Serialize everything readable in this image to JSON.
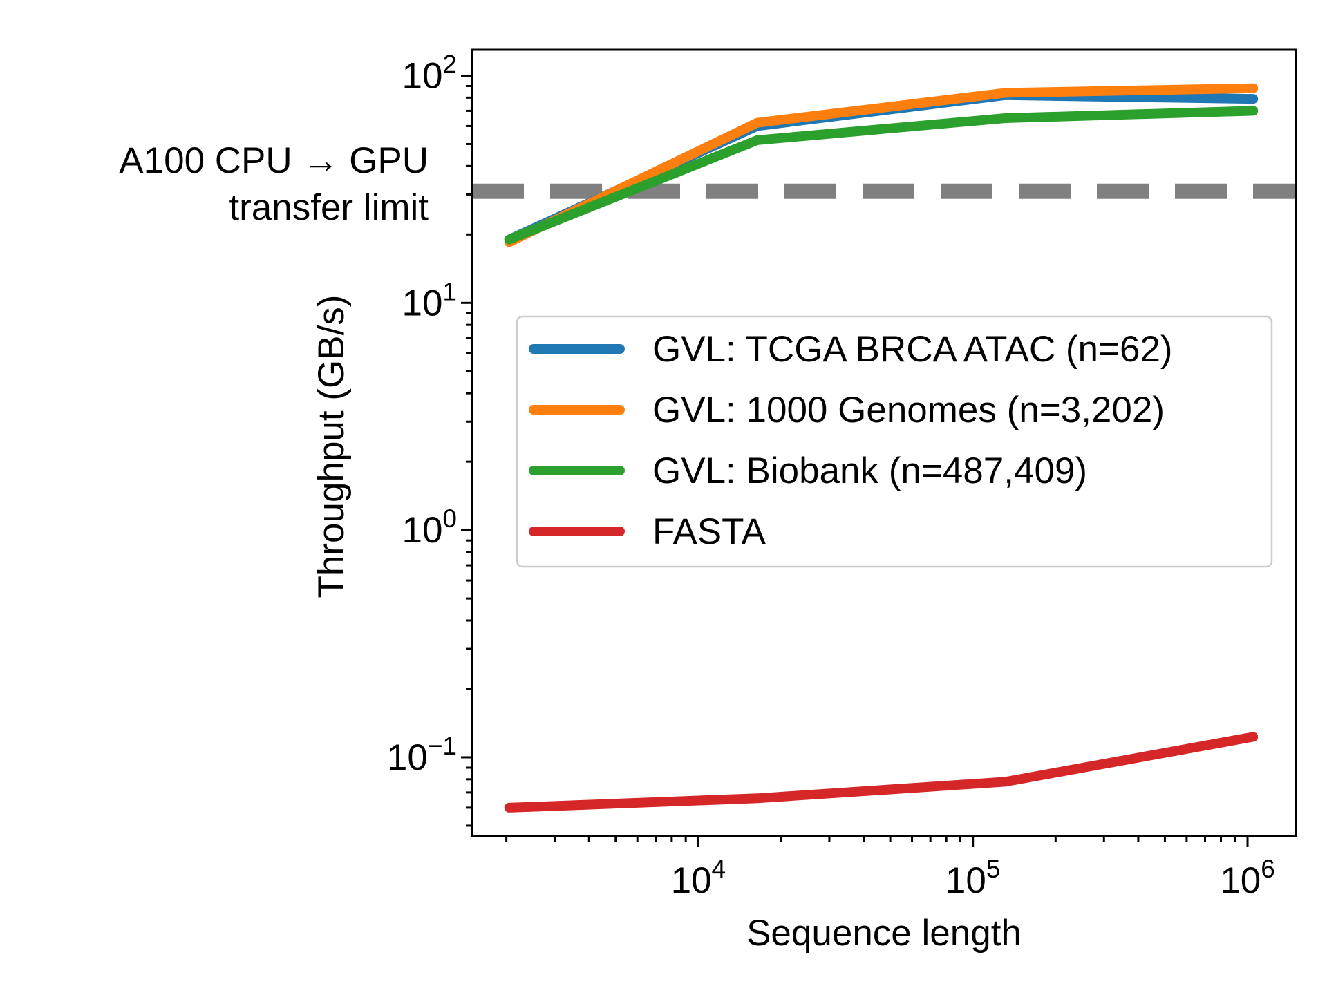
{
  "chart_data": {
    "type": "line",
    "xlabel": "Sequence length",
    "ylabel": "Throughput (GB/s)",
    "xscale": "log",
    "yscale": "log",
    "xlim": [
      1500,
      1500000
    ],
    "ylim": [
      0.045,
      130
    ],
    "x": [
      2048,
      16384,
      131072,
      1048576
    ],
    "x_ticks": [
      {
        "value": 10000,
        "base": "10",
        "exp": "4"
      },
      {
        "value": 100000,
        "base": "10",
        "exp": "5"
      },
      {
        "value": 1000000,
        "base": "10",
        "exp": "6"
      }
    ],
    "y_ticks": [
      {
        "value": 0.1,
        "base": "10",
        "exp": "−1"
      },
      {
        "value": 1,
        "base": "10",
        "exp": "0"
      },
      {
        "value": 10,
        "base": "10",
        "exp": "1"
      },
      {
        "value": 100,
        "base": "10",
        "exp": "2"
      }
    ],
    "series": [
      {
        "name": "GVL: TCGA BRCA ATAC (n=62)",
        "color": "#1f77b4",
        "values": [
          19,
          60,
          82,
          79
        ]
      },
      {
        "name": "GVL: 1000 Genomes (n=3,202)",
        "color": "#ff7f0e",
        "values": [
          18.5,
          62,
          84,
          88
        ]
      },
      {
        "name": "GVL: Biobank (n=487,409)",
        "color": "#2ca02c",
        "values": [
          19,
          52,
          65,
          70
        ]
      },
      {
        "name": "FASTA",
        "color": "#d62728",
        "values": [
          0.06,
          0.066,
          0.078,
          0.123
        ]
      }
    ],
    "reference_line": {
      "value": 31,
      "color": "#808080",
      "style": "dashed",
      "label_line1": "A100 CPU → GPU",
      "label_line2": "transfer limit"
    },
    "legend_position": "center-right",
    "grid": false
  }
}
